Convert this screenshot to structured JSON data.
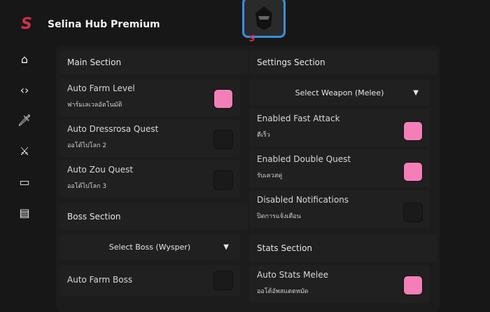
{
  "app": {
    "title": "Selina Hub Premium",
    "logo": "S"
  },
  "sidebar": [
    "home-icon",
    "code-icon",
    "sword-icon",
    "crossed-swords-icon",
    "airplay-icon",
    "document-icon"
  ],
  "left": {
    "main_section": "Main Section",
    "items": [
      {
        "label": "Auto Farm Level",
        "sub": "ฟาร์มเลเวลอัตโนมัติ",
        "on": true
      },
      {
        "label": "Auto Dressrosa Quest",
        "sub": "ออโต้ไปโลก 2",
        "on": false
      },
      {
        "label": "Auto Zou Quest",
        "sub": "ออโต้ไปโลก 3",
        "on": false
      }
    ],
    "boss_section": "Boss Section",
    "boss_dropdown": "Select Boss (Wysper)",
    "boss_item": {
      "label": "Auto Farm Boss",
      "on": false
    }
  },
  "right": {
    "settings_section": "Settings Section",
    "weapon_dropdown": "Select Weapon (Melee)",
    "items": [
      {
        "label": "Enabled Fast Attack",
        "sub": "ตีเร็ว",
        "on": true
      },
      {
        "label": "Enabled Double Quest",
        "sub": "รับเควสคู่",
        "on": true
      },
      {
        "label": "Disabled Notifications",
        "sub": "ปิดการแจ้งเตือน",
        "on": false
      }
    ],
    "stats_section": "Stats Section",
    "stats_item": {
      "label": "Auto Stats Melee",
      "sub": "ออโต้อัพสแตตหมัด",
      "on": true
    }
  },
  "colors": {
    "toggle_on": "#f47fb7",
    "accent_border": "#3a8ee0",
    "logo": "#d0314a"
  }
}
